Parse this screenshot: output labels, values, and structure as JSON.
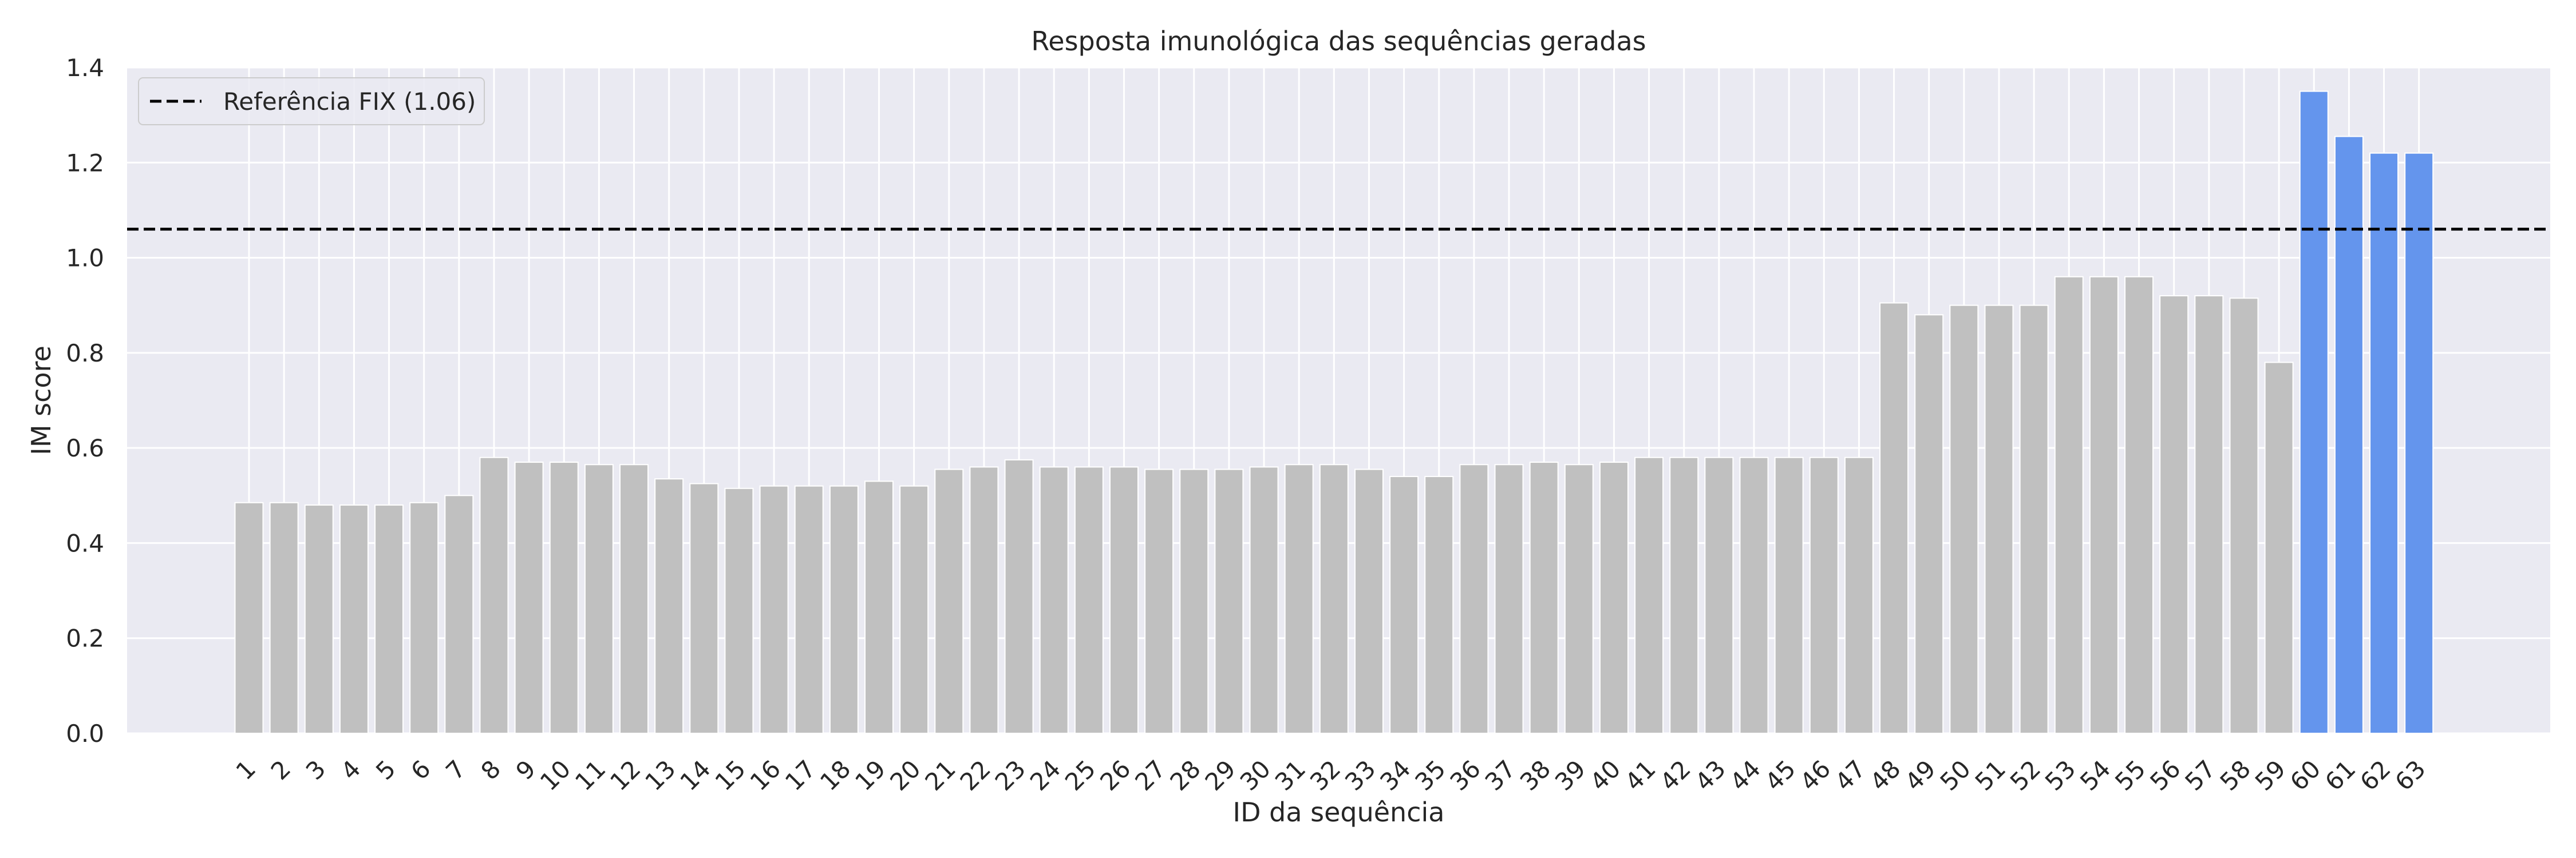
{
  "chart_data": {
    "type": "bar",
    "title": "Resposta imunológica das sequências geradas",
    "xlabel": "ID da sequência",
    "ylabel": "IM score",
    "ylim": [
      0,
      1.4
    ],
    "yticks": [
      "0.0",
      "0.2",
      "0.4",
      "0.6",
      "0.8",
      "1.0",
      "1.2",
      "1.4"
    ],
    "categories": [
      "1",
      "2",
      "3",
      "4",
      "5",
      "6",
      "7",
      "8",
      "9",
      "10",
      "11",
      "12",
      "13",
      "14",
      "15",
      "16",
      "17",
      "18",
      "19",
      "20",
      "21",
      "22",
      "23",
      "24",
      "25",
      "26",
      "27",
      "28",
      "29",
      "30",
      "31",
      "32",
      "33",
      "34",
      "35",
      "36",
      "37",
      "38",
      "39",
      "40",
      "41",
      "42",
      "43",
      "44",
      "45",
      "46",
      "47",
      "48",
      "49",
      "50",
      "51",
      "52",
      "53",
      "54",
      "55",
      "56",
      "57",
      "58",
      "59",
      "60",
      "61",
      "62",
      "63"
    ],
    "values": [
      0.485,
      0.485,
      0.48,
      0.48,
      0.48,
      0.485,
      0.5,
      0.58,
      0.57,
      0.57,
      0.565,
      0.565,
      0.535,
      0.525,
      0.515,
      0.52,
      0.52,
      0.52,
      0.53,
      0.52,
      0.555,
      0.56,
      0.575,
      0.56,
      0.56,
      0.56,
      0.555,
      0.555,
      0.555,
      0.56,
      0.565,
      0.565,
      0.555,
      0.54,
      0.54,
      0.565,
      0.565,
      0.57,
      0.565,
      0.57,
      0.58,
      0.58,
      0.58,
      0.58,
      0.58,
      0.58,
      0.58,
      0.905,
      0.88,
      0.9,
      0.9,
      0.9,
      0.96,
      0.96,
      0.96,
      0.92,
      0.92,
      0.915,
      0.78,
      1.35,
      1.255,
      1.22,
      1.22
    ],
    "highlighted": [
      "60",
      "61",
      "62",
      "63"
    ],
    "reference_line": {
      "value": 1.06,
      "label": "Referência FIX (1.06)",
      "style": "dashed"
    },
    "colors": {
      "bar": "#c0c0c0",
      "highlight": "#6495ed",
      "plot_background": "#eaeaf2",
      "grid": "#ffffff",
      "reference": "#000000"
    },
    "grid": true,
    "legend": "top-left"
  }
}
